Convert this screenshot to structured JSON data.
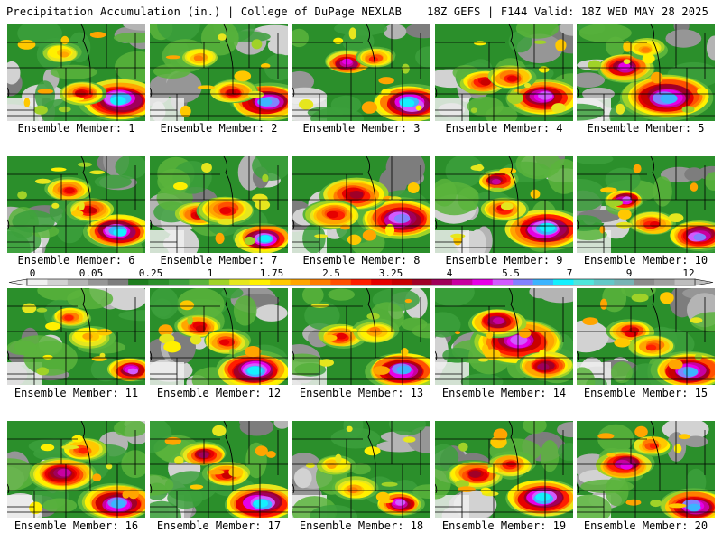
{
  "header": {
    "left": "Precipitation Accumulation (in.) | College of DuPage NEXLAB",
    "right": "18Z GEFS | F144 Valid: 18Z WED MAY 28 2025"
  },
  "panels": [
    {
      "label": "Ensemble Member: 1",
      "storms": [
        [
          0.82,
          0.78,
          0.22,
          1.0
        ],
        [
          0.55,
          0.72,
          0.12,
          0.6
        ],
        [
          0.4,
          0.3,
          0.1,
          0.4
        ]
      ]
    },
    {
      "label": "Ensemble Member: 2",
      "storms": [
        [
          0.85,
          0.8,
          0.2,
          0.95
        ],
        [
          0.35,
          0.35,
          0.1,
          0.45
        ],
        [
          0.6,
          0.7,
          0.12,
          0.6
        ]
      ]
    },
    {
      "label": "Ensemble Member: 3",
      "storms": [
        [
          0.85,
          0.82,
          0.2,
          1.0
        ],
        [
          0.4,
          0.4,
          0.12,
          0.8
        ],
        [
          0.6,
          0.35,
          0.1,
          0.5
        ]
      ]
    },
    {
      "label": "Ensemble Member: 4",
      "storms": [
        [
          0.78,
          0.75,
          0.2,
          0.85
        ],
        [
          0.35,
          0.6,
          0.12,
          0.6
        ],
        [
          0.55,
          0.55,
          0.12,
          0.55
        ]
      ]
    },
    {
      "label": "Ensemble Member: 5",
      "storms": [
        [
          0.65,
          0.75,
          0.25,
          0.95
        ],
        [
          0.35,
          0.45,
          0.15,
          0.8
        ],
        [
          0.5,
          0.25,
          0.1,
          0.45
        ]
      ]
    },
    {
      "label": "Ensemble Member: 6",
      "storms": [
        [
          0.8,
          0.78,
          0.18,
          1.0
        ],
        [
          0.45,
          0.35,
          0.12,
          0.55
        ],
        [
          0.6,
          0.55,
          0.12,
          0.6
        ]
      ]
    },
    {
      "label": "Ensemble Member: 7",
      "storms": [
        [
          0.82,
          0.85,
          0.15,
          1.0
        ],
        [
          0.35,
          0.6,
          0.12,
          0.6
        ],
        [
          0.55,
          0.55,
          0.15,
          0.55
        ]
      ]
    },
    {
      "label": "Ensemble Member: 8",
      "storms": [
        [
          0.78,
          0.65,
          0.22,
          0.9
        ],
        [
          0.45,
          0.4,
          0.18,
          0.65
        ],
        [
          0.3,
          0.6,
          0.15,
          0.55
        ]
      ]
    },
    {
      "label": "Ensemble Member: 9",
      "storms": [
        [
          0.8,
          0.75,
          0.22,
          1.0
        ],
        [
          0.45,
          0.25,
          0.1,
          0.75
        ],
        [
          0.5,
          0.55,
          0.12,
          0.55
        ]
      ]
    },
    {
      "label": "Ensemble Member: 10",
      "storms": [
        [
          0.88,
          0.82,
          0.16,
          0.9
        ],
        [
          0.35,
          0.45,
          0.1,
          0.85
        ],
        [
          0.55,
          0.7,
          0.12,
          0.55
        ]
      ]
    },
    {
      "label": "Ensemble Member: 11",
      "storms": [
        [
          0.9,
          0.85,
          0.12,
          0.85
        ],
        [
          0.45,
          0.3,
          0.1,
          0.5
        ],
        [
          0.6,
          0.5,
          0.12,
          0.4
        ]
      ]
    },
    {
      "label": "Ensemble Member: 12",
      "storms": [
        [
          0.75,
          0.85,
          0.2,
          1.0
        ],
        [
          0.35,
          0.4,
          0.12,
          0.6
        ],
        [
          0.55,
          0.55,
          0.12,
          0.55
        ]
      ]
    },
    {
      "label": "Ensemble Member: 13",
      "storms": [
        [
          0.8,
          0.85,
          0.2,
          0.95
        ],
        [
          0.35,
          0.5,
          0.12,
          0.55
        ],
        [
          0.6,
          0.45,
          0.12,
          0.45
        ]
      ]
    },
    {
      "label": "Ensemble Member: 14",
      "storms": [
        [
          0.6,
          0.55,
          0.25,
          0.85
        ],
        [
          0.45,
          0.35,
          0.15,
          0.75
        ],
        [
          0.8,
          0.8,
          0.15,
          0.7
        ]
      ]
    },
    {
      "label": "Ensemble Member: 15",
      "storms": [
        [
          0.82,
          0.85,
          0.2,
          0.95
        ],
        [
          0.4,
          0.45,
          0.12,
          0.6
        ],
        [
          0.55,
          0.6,
          0.12,
          0.5
        ]
      ]
    },
    {
      "label": "Ensemble Member: 16",
      "storms": [
        [
          0.8,
          0.85,
          0.2,
          0.95
        ],
        [
          0.4,
          0.55,
          0.18,
          0.75
        ],
        [
          0.55,
          0.3,
          0.12,
          0.5
        ]
      ]
    },
    {
      "label": "Ensemble Member: 17",
      "storms": [
        [
          0.8,
          0.85,
          0.2,
          1.0
        ],
        [
          0.4,
          0.35,
          0.12,
          0.7
        ],
        [
          0.55,
          0.55,
          0.12,
          0.6
        ]
      ]
    },
    {
      "label": "Ensemble Member: 18",
      "storms": [
        [
          0.78,
          0.85,
          0.12,
          0.85
        ],
        [
          0.45,
          0.7,
          0.12,
          0.45
        ],
        [
          0.3,
          0.45,
          0.1,
          0.4
        ]
      ]
    },
    {
      "label": "Ensemble Member: 19",
      "storms": [
        [
          0.78,
          0.8,
          0.2,
          1.0
        ],
        [
          0.3,
          0.55,
          0.15,
          0.65
        ],
        [
          0.55,
          0.45,
          0.12,
          0.55
        ]
      ]
    },
    {
      "label": "Ensemble Member: 20",
      "storms": [
        [
          0.85,
          0.88,
          0.18,
          0.95
        ],
        [
          0.35,
          0.45,
          0.15,
          0.8
        ],
        [
          0.55,
          0.25,
          0.1,
          0.5
        ]
      ]
    }
  ],
  "colorbar": {
    "labels": [
      "0",
      "0.05",
      "0.25",
      "1",
      "1.75",
      "2.5",
      "3.25",
      "4",
      "5.5",
      "7",
      "9",
      "12"
    ],
    "colors": [
      "#f0f0f0",
      "#d2d2d2",
      "#b4b4b4",
      "#969696",
      "#7d7d7d",
      "#1e7d1e",
      "#2b8f2b",
      "#3ca03c",
      "#5ab43c",
      "#a0d228",
      "#e6e61e",
      "#fff000",
      "#ffc800",
      "#ffa500",
      "#ff7d00",
      "#ff5000",
      "#ff1e00",
      "#e60000",
      "#c80000",
      "#a00028",
      "#a0005a",
      "#c800a0",
      "#e600e6",
      "#d25aff",
      "#8282ff",
      "#3cb4ff",
      "#14f0ff",
      "#50e6dc",
      "#64c8c8",
      "#78b4b4",
      "#8c8c8c",
      "#a0a0a0",
      "#bebebe"
    ]
  },
  "map_colors": {
    "dry": [
      "#f0f0f0",
      "#d2d2d2",
      "#b4b4b4",
      "#969696",
      "#7d7d7d"
    ],
    "wet": [
      "#1e7d1e",
      "#2b8f2b",
      "#3ca03c",
      "#5ab43c",
      "#a0d228",
      "#e6e61e",
      "#fff000",
      "#ffc800",
      "#ffa500",
      "#ff7d00",
      "#ff5000",
      "#ff1e00",
      "#e60000",
      "#c80000",
      "#a00028",
      "#a0005a",
      "#c800a0",
      "#e600e6",
      "#d25aff",
      "#8282ff",
      "#3cb4ff",
      "#14f0ff"
    ]
  }
}
